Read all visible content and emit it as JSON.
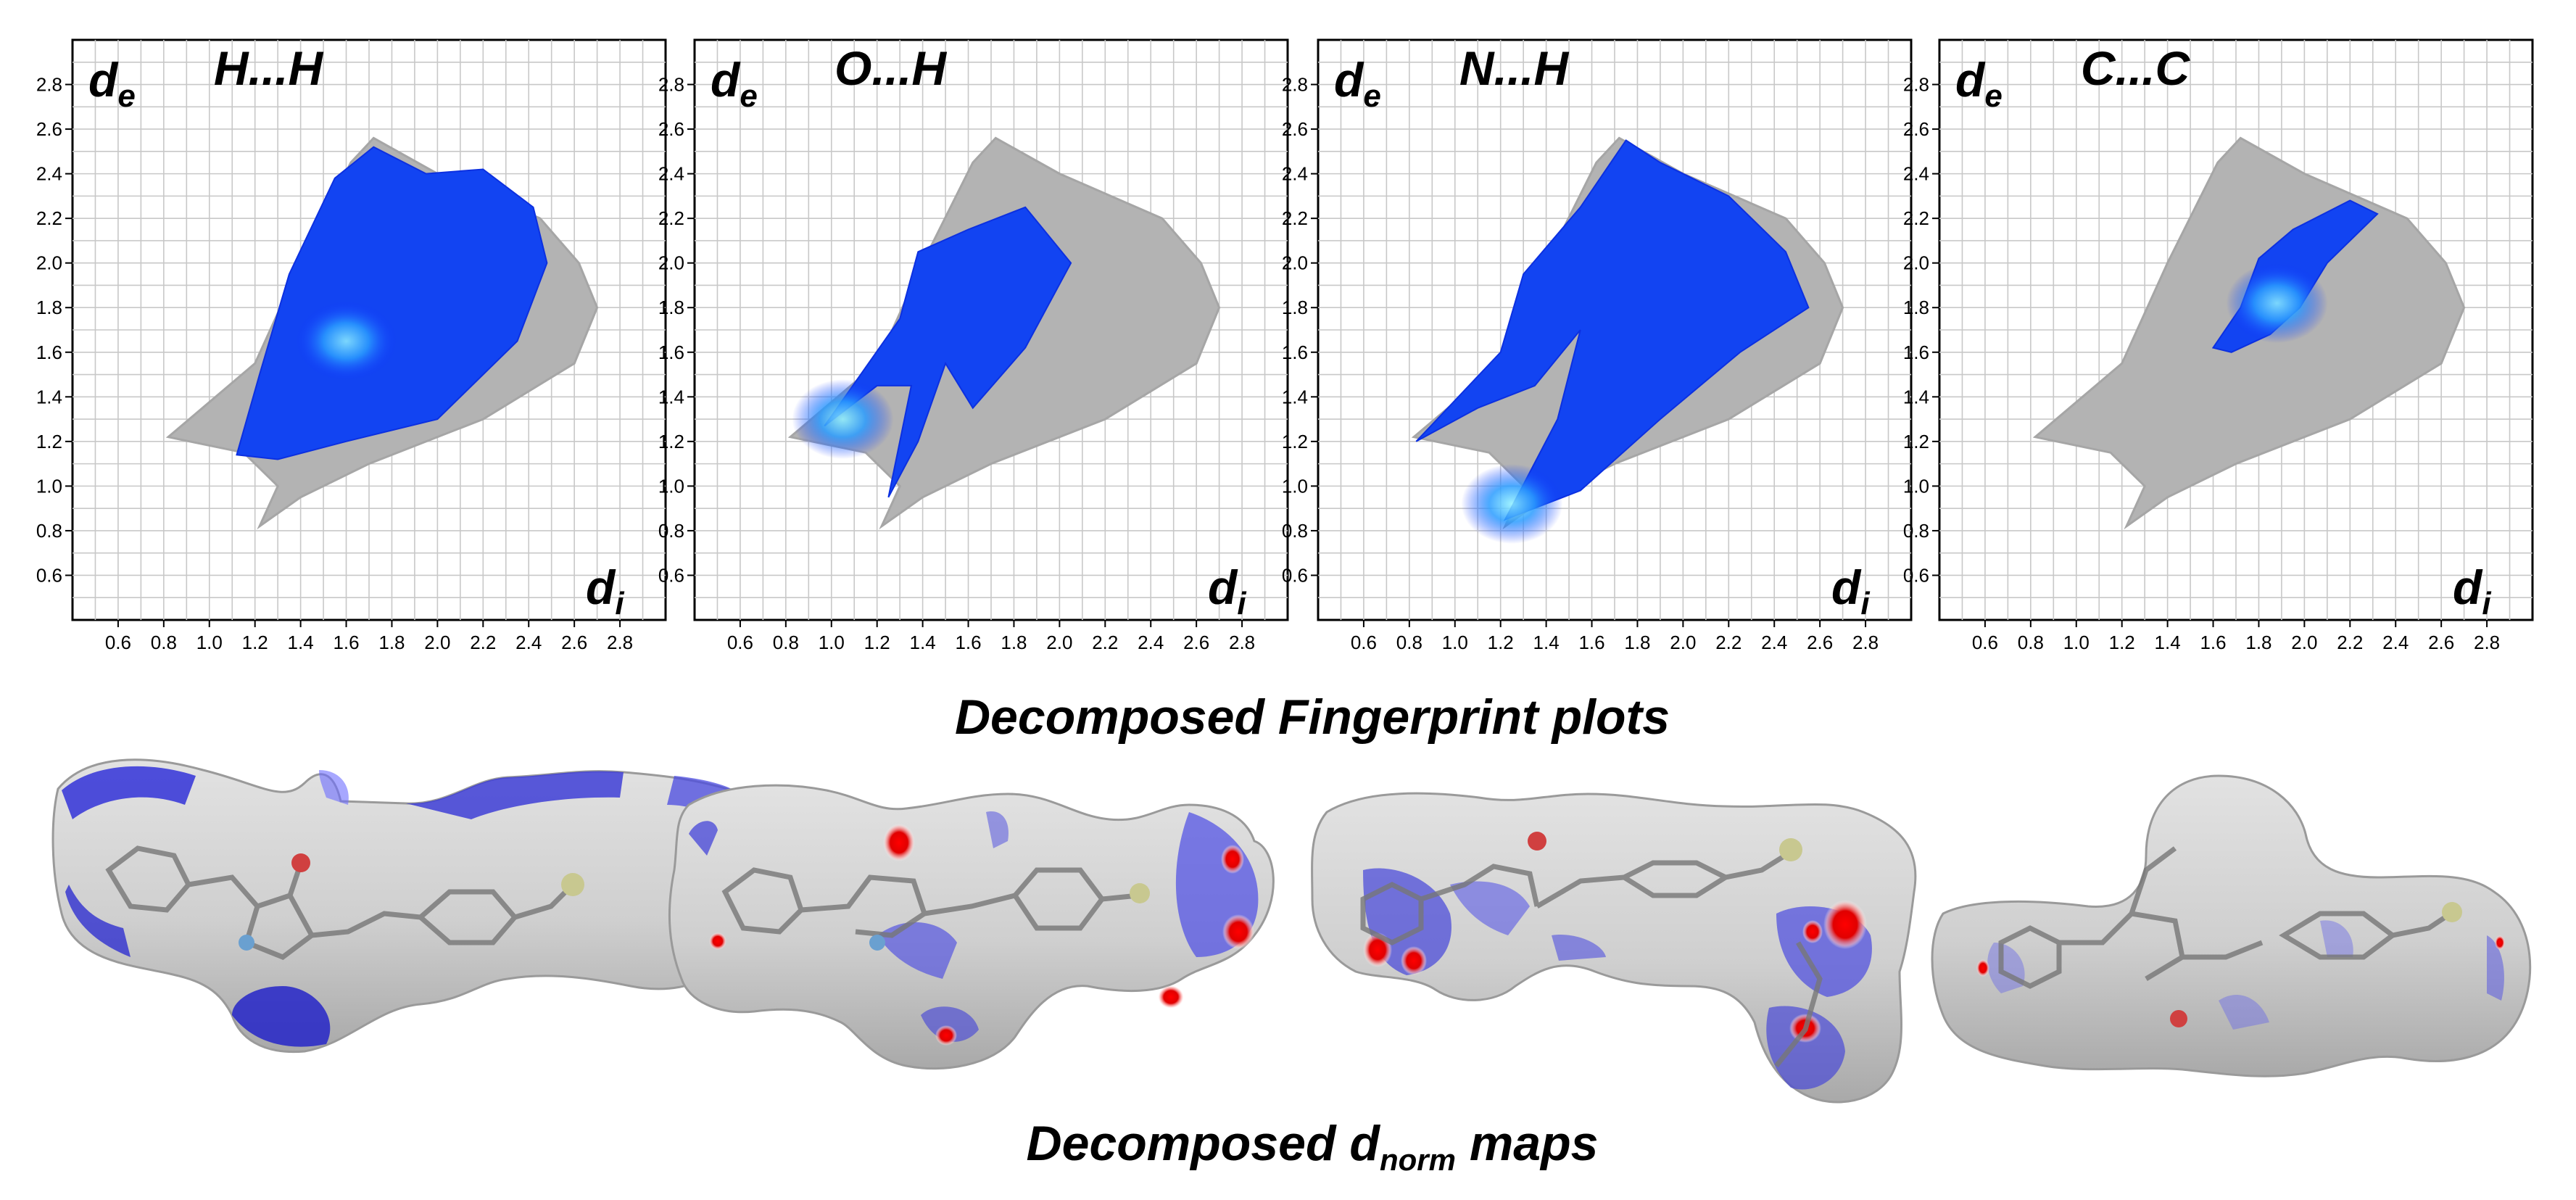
{
  "figure": {
    "fingerprint_caption": "Decomposed Fingerprint plots",
    "dnorm_caption": {
      "pre": "Decomposed d",
      "sub": "norm",
      "post": " maps"
    }
  },
  "axis_labels": {
    "y_main": "d",
    "y_sub": "e",
    "x_main": "d",
    "x_sub": "i"
  },
  "chart_data": [
    {
      "type": "scatter",
      "title": "H...H",
      "x_ticks": [
        "0.6",
        "0.8",
        "1.0",
        "1.2",
        "1.4",
        "1.6",
        "1.8",
        "2.0",
        "2.2",
        "2.4",
        "2.6",
        "2.8"
      ],
      "y_ticks": [
        "0.6",
        "0.8",
        "1.0",
        "1.2",
        "1.4",
        "1.6",
        "1.8",
        "2.0",
        "2.2",
        "2.4",
        "2.6",
        "2.8"
      ],
      "xlim": [
        0.4,
        3.0
      ],
      "ylim": [
        0.4,
        3.0
      ],
      "grid": true,
      "background_region": [
        [
          0.82,
          1.22
        ],
        [
          1.2,
          1.55
        ],
        [
          1.4,
          2.0
        ],
        [
          1.62,
          2.45
        ],
        [
          1.72,
          2.56
        ],
        [
          2.0,
          2.4
        ],
        [
          2.45,
          2.2
        ],
        [
          2.62,
          2.0
        ],
        [
          2.7,
          1.8
        ],
        [
          2.6,
          1.55
        ],
        [
          2.2,
          1.3
        ],
        [
          1.7,
          1.1
        ],
        [
          1.4,
          0.95
        ],
        [
          1.22,
          0.82
        ],
        [
          1.3,
          1.0
        ],
        [
          1.15,
          1.15
        ]
      ],
      "highlight_region": [
        [
          1.12,
          1.14
        ],
        [
          1.22,
          1.5
        ],
        [
          1.35,
          1.95
        ],
        [
          1.55,
          2.38
        ],
        [
          1.72,
          2.52
        ],
        [
          1.95,
          2.4
        ],
        [
          2.2,
          2.42
        ],
        [
          2.42,
          2.25
        ],
        [
          2.48,
          2.0
        ],
        [
          2.35,
          1.65
        ],
        [
          2.0,
          1.3
        ],
        [
          1.6,
          1.2
        ],
        [
          1.3,
          1.12
        ]
      ],
      "hotspot": [
        1.6,
        1.65
      ]
    },
    {
      "type": "scatter",
      "title": "O...H",
      "x_ticks": [
        "0.6",
        "0.8",
        "1.0",
        "1.2",
        "1.4",
        "1.6",
        "1.8",
        "2.0",
        "2.2",
        "2.4",
        "2.6",
        "2.8"
      ],
      "y_ticks": [
        "0.6",
        "0.8",
        "1.0",
        "1.2",
        "1.4",
        "1.6",
        "1.8",
        "2.0",
        "2.2",
        "2.4",
        "2.6",
        "2.8"
      ],
      "xlim": [
        0.4,
        3.0
      ],
      "ylim": [
        0.4,
        3.0
      ],
      "grid": true,
      "background_region": [
        [
          0.82,
          1.22
        ],
        [
          1.2,
          1.55
        ],
        [
          1.4,
          2.0
        ],
        [
          1.62,
          2.45
        ],
        [
          1.72,
          2.56
        ],
        [
          2.0,
          2.4
        ],
        [
          2.45,
          2.2
        ],
        [
          2.62,
          2.0
        ],
        [
          2.7,
          1.8
        ],
        [
          2.6,
          1.55
        ],
        [
          2.2,
          1.3
        ],
        [
          1.7,
          1.1
        ],
        [
          1.4,
          0.95
        ],
        [
          1.22,
          0.82
        ],
        [
          1.3,
          1.0
        ],
        [
          1.15,
          1.15
        ]
      ],
      "highlight_region": [
        [
          0.97,
          1.27
        ],
        [
          1.3,
          1.75
        ],
        [
          1.38,
          2.05
        ],
        [
          1.6,
          2.15
        ],
        [
          1.85,
          2.25
        ],
        [
          2.05,
          2.0
        ],
        [
          1.85,
          1.62
        ],
        [
          1.62,
          1.35
        ],
        [
          1.5,
          1.55
        ],
        [
          1.38,
          1.2
        ],
        [
          1.25,
          0.95
        ],
        [
          1.35,
          1.45
        ],
        [
          1.2,
          1.45
        ]
      ],
      "hotspot": [
        1.05,
        1.3
      ]
    },
    {
      "type": "scatter",
      "title": "N...H",
      "x_ticks": [
        "0.6",
        "0.8",
        "1.0",
        "1.2",
        "1.4",
        "1.6",
        "1.8",
        "2.0",
        "2.2",
        "2.4",
        "2.6",
        "2.8"
      ],
      "y_ticks": [
        "0.6",
        "0.8",
        "1.0",
        "1.2",
        "1.4",
        "1.6",
        "1.8",
        "2.0",
        "2.2",
        "2.4",
        "2.6",
        "2.8"
      ],
      "xlim": [
        0.4,
        3.0
      ],
      "ylim": [
        0.4,
        3.0
      ],
      "grid": true,
      "background_region": [
        [
          0.82,
          1.22
        ],
        [
          1.2,
          1.55
        ],
        [
          1.4,
          2.0
        ],
        [
          1.62,
          2.45
        ],
        [
          1.72,
          2.56
        ],
        [
          2.0,
          2.4
        ],
        [
          2.45,
          2.2
        ],
        [
          2.62,
          2.0
        ],
        [
          2.7,
          1.8
        ],
        [
          2.6,
          1.55
        ],
        [
          2.2,
          1.3
        ],
        [
          1.7,
          1.1
        ],
        [
          1.4,
          0.95
        ],
        [
          1.22,
          0.82
        ],
        [
          1.3,
          1.0
        ],
        [
          1.15,
          1.15
        ]
      ],
      "highlight_region": [
        [
          0.83,
          1.2
        ],
        [
          1.2,
          1.6
        ],
        [
          1.3,
          1.95
        ],
        [
          1.55,
          2.25
        ],
        [
          1.75,
          2.55
        ],
        [
          1.9,
          2.45
        ],
        [
          2.2,
          2.3
        ],
        [
          2.45,
          2.05
        ],
        [
          2.55,
          1.8
        ],
        [
          2.25,
          1.6
        ],
        [
          1.9,
          1.3
        ],
        [
          1.55,
          0.98
        ],
        [
          1.22,
          0.85
        ],
        [
          1.45,
          1.3
        ],
        [
          1.55,
          1.7
        ],
        [
          1.35,
          1.45
        ],
        [
          1.1,
          1.35
        ]
      ],
      "hotspot": [
        1.25,
        0.92
      ]
    },
    {
      "type": "scatter",
      "title": "C...C",
      "x_ticks": [
        "0.6",
        "0.8",
        "1.0",
        "1.2",
        "1.4",
        "1.6",
        "1.8",
        "2.0",
        "2.2",
        "2.4",
        "2.6",
        "2.8"
      ],
      "y_ticks": [
        "0.6",
        "0.8",
        "1.0",
        "1.2",
        "1.4",
        "1.6",
        "1.8",
        "2.0",
        "2.2",
        "2.4",
        "2.6",
        "2.8"
      ],
      "xlim": [
        0.4,
        3.0
      ],
      "ylim": [
        0.4,
        3.0
      ],
      "grid": true,
      "background_region": [
        [
          0.82,
          1.22
        ],
        [
          1.2,
          1.55
        ],
        [
          1.4,
          2.0
        ],
        [
          1.62,
          2.45
        ],
        [
          1.72,
          2.56
        ],
        [
          2.0,
          2.4
        ],
        [
          2.45,
          2.2
        ],
        [
          2.62,
          2.0
        ],
        [
          2.7,
          1.8
        ],
        [
          2.6,
          1.55
        ],
        [
          2.2,
          1.3
        ],
        [
          1.7,
          1.1
        ],
        [
          1.4,
          0.95
        ],
        [
          1.22,
          0.82
        ],
        [
          1.3,
          1.0
        ],
        [
          1.15,
          1.15
        ]
      ],
      "highlight_region": [
        [
          1.6,
          1.62
        ],
        [
          1.72,
          1.8
        ],
        [
          1.8,
          2.02
        ],
        [
          1.95,
          2.15
        ],
        [
          2.2,
          2.28
        ],
        [
          2.32,
          2.22
        ],
        [
          2.1,
          2.0
        ],
        [
          1.98,
          1.8
        ],
        [
          1.85,
          1.68
        ],
        [
          1.68,
          1.6
        ]
      ],
      "hotspot": [
        1.88,
        1.82
      ]
    }
  ]
}
